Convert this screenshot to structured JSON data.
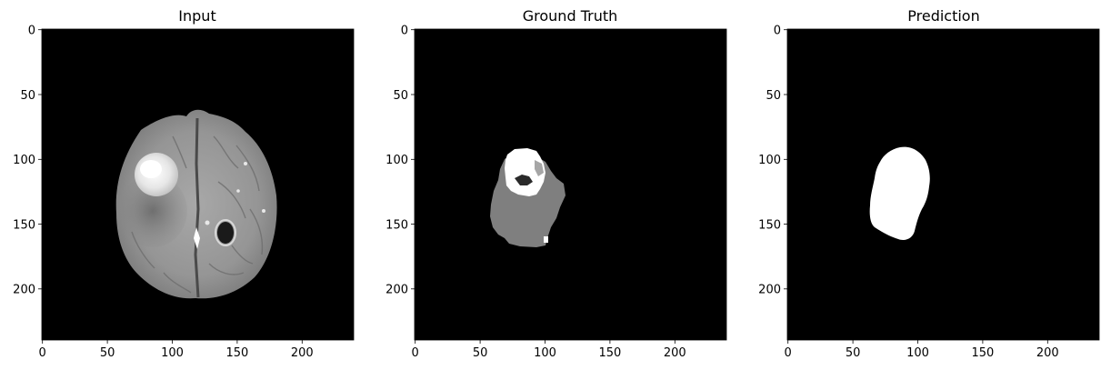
{
  "figure": {
    "panels": [
      {
        "id": "input",
        "title": "Input",
        "x_ticks": [
          "0",
          "50",
          "100",
          "150",
          "200"
        ],
        "y_ticks": [
          "0",
          "50",
          "100",
          "150",
          "200"
        ]
      },
      {
        "id": "ground-truth",
        "title": "Ground Truth",
        "x_ticks": [
          "0",
          "50",
          "100",
          "150",
          "200"
        ],
        "y_ticks": [
          "0",
          "50",
          "100",
          "150",
          "200"
        ]
      },
      {
        "id": "prediction",
        "title": "Prediction",
        "x_ticks": [
          "0",
          "50",
          "100",
          "150",
          "200"
        ],
        "y_ticks": [
          "0",
          "50",
          "100",
          "150",
          "200"
        ]
      }
    ],
    "image_extent": [
      0,
      240
    ],
    "tick_values": [
      0,
      50,
      100,
      150,
      200
    ],
    "colors": {
      "background": "#000000",
      "tissue": "#9a9a9a",
      "tumor_core": "#ffffff",
      "edema_label": "#7f7f7f",
      "prediction_mask": "#ffffff"
    }
  }
}
